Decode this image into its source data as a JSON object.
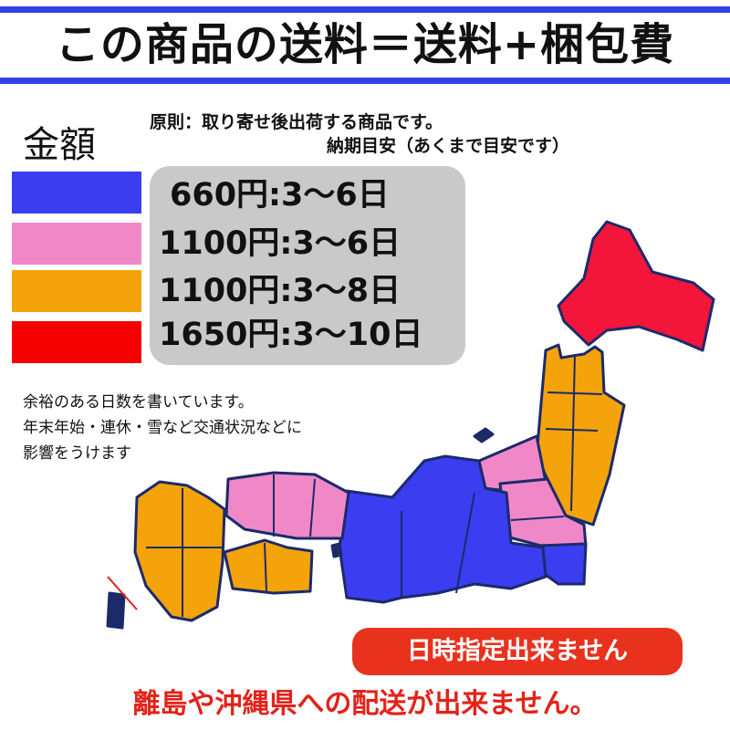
{
  "header": {
    "title": "この商品の送料＝送料+梱包費"
  },
  "legend": {
    "heading": "金額"
  },
  "rule": {
    "line1": "原則：取り寄せ後出荷する商品です。",
    "line2": "納期目安（あくまで目安です）"
  },
  "rates": [
    {
      "label": "660円:3〜6日",
      "color": "#3a3ef0"
    },
    {
      "label": "1100円:3〜6日",
      "color": "#f088c8"
    },
    {
      "label": "1100円:3〜8日",
      "color": "#f5a30a"
    },
    {
      "label": "1650円:3〜10日",
      "color": "#f40000"
    }
  ],
  "notes": [
    "余裕のある日数を書いています。",
    "年末年始・連休・雪など交通状況などに",
    "影響をうけます"
  ],
  "button": {
    "label": "日時指定出来ません"
  },
  "warning": {
    "text": "離島や沖縄県への配送が出来ません。"
  },
  "colors": {
    "accent": "#3341e8",
    "alert": "#e2231a",
    "box": "#c9c9c9"
  }
}
